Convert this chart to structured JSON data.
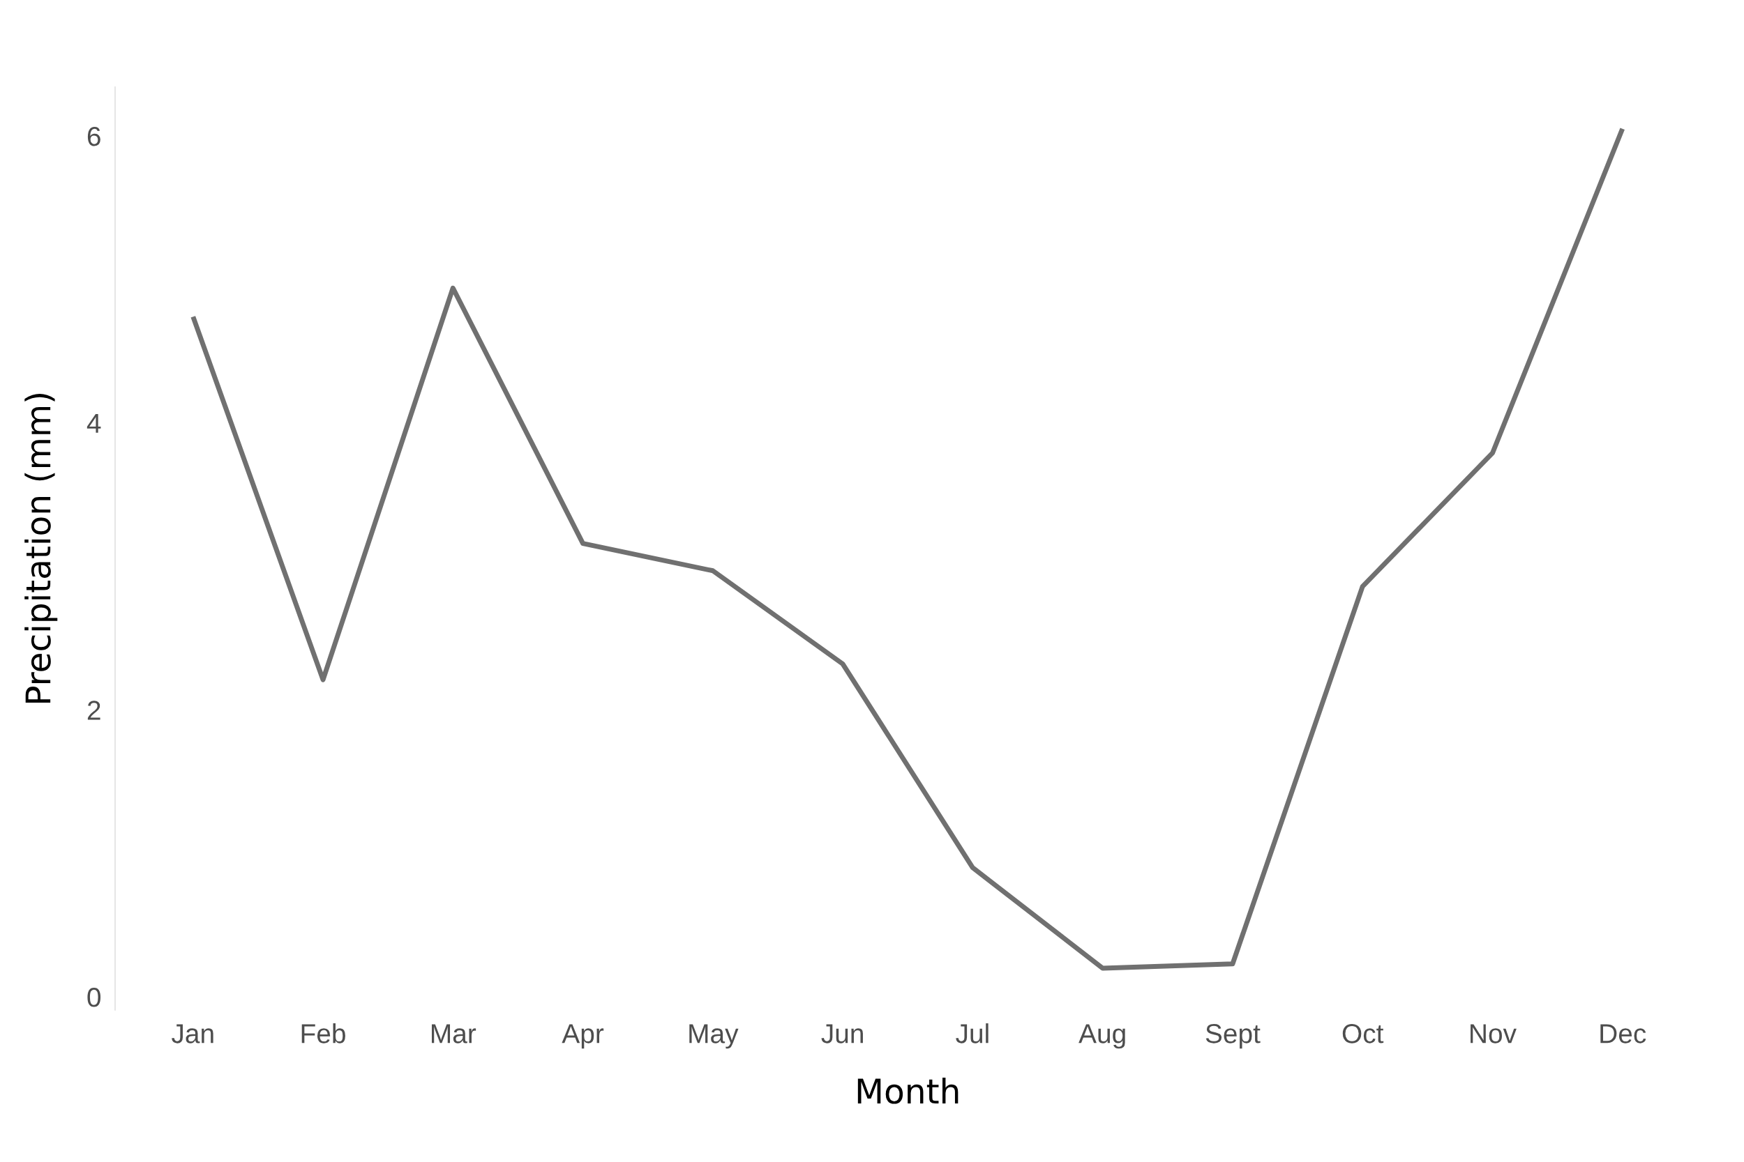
{
  "chart_data": {
    "type": "line",
    "xlabel": "Month",
    "ylabel": "Precipitation (mm)",
    "categories": [
      "Jan",
      "Feb",
      "Mar",
      "Apr",
      "May",
      "Jun",
      "Jul",
      "Aug",
      "Sept",
      "Oct",
      "Nov",
      "Dec"
    ],
    "series": [
      {
        "color": "#707070",
        "values": [
          4.74,
          2.21,
          4.94,
          3.16,
          2.97,
          2.32,
          0.9,
          0.2,
          0.23,
          2.86,
          3.79,
          6.05
        ]
      }
    ],
    "ylim": [
      -0.09,
      6.34
    ],
    "yticks": [
      0,
      2,
      4,
      6
    ],
    "grid": false,
    "legend": false
  }
}
